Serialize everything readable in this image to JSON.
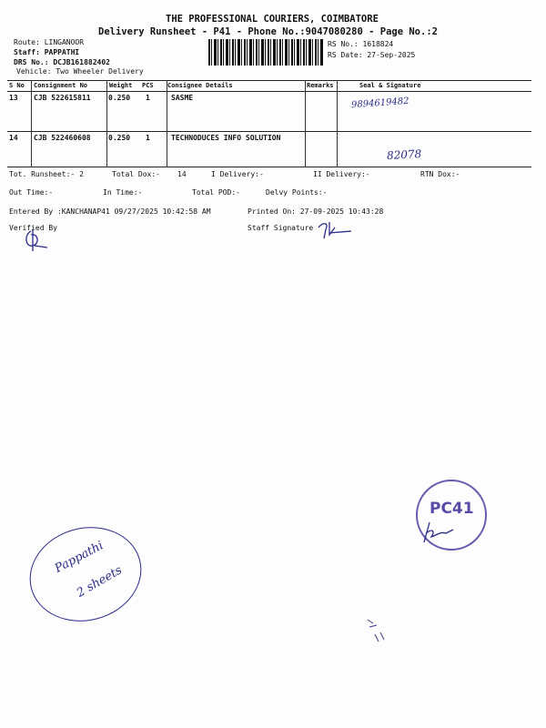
{
  "header": {
    "company": "THE PROFESSIONAL COURIERS, COIMBATORE",
    "subtitle": "Delivery Runsheet - P41 - Phone No.:9047080280 - Page No.:2",
    "route": "Route: LINGANOOR",
    "staff": "Staff: PAPPATHI",
    "drs_no": "DRS No.: DCJB161882402",
    "vehicle": "Vehicle: Two Wheeler Delivery",
    "rs_no": "RS No.: 1618824",
    "rs_date": "RS Date: 27-Sep-2025"
  },
  "table": {
    "columns": [
      "S No",
      "Consignment No",
      "Weight",
      "PCS",
      "Consignee Details",
      "Remarks",
      "Seal & Signature"
    ],
    "rows": [
      {
        "sno": "13",
        "consignment": "CJB 522615811",
        "weight": "0.250",
        "pcs": "1",
        "consignee": "SASME",
        "remarks": "",
        "signature": "9894619482"
      },
      {
        "sno": "14",
        "consignment": "CJB 522460608",
        "weight": "0.250",
        "pcs": "1",
        "consignee": "TECHNODUCES INFO SOLUTION",
        "remarks": "",
        "signature": "82078"
      }
    ]
  },
  "summary": {
    "tot_runsheet": "Tot. Runsheet:- 2",
    "total_dox": "Total Dox:-",
    "total_dox_value": "14",
    "i_delivery": "I Delivery:-",
    "ii_delivery": "II Delivery:-",
    "rtn_dox": "RTN Dox:-",
    "out_time": "Out Time:-",
    "in_time": "In Time:-",
    "total_pod": "Total POD:-",
    "delvy_points": "Delvy Points:-",
    "entered_by": "Entered By :KANCHANAP41 09/27/2025 10:42:58 AM",
    "printed_on": "Printed On: 27-09-2025 10:43:28",
    "verified_by": "Verified By",
    "staff_signature": "Staff Signature"
  },
  "annotations": {
    "stamp": "PC41",
    "circle_note_1": "Pappathi",
    "circle_note_2": "2 sheets"
  },
  "colors": {
    "ink": "#2a2a8a",
    "text": "#111111"
  }
}
